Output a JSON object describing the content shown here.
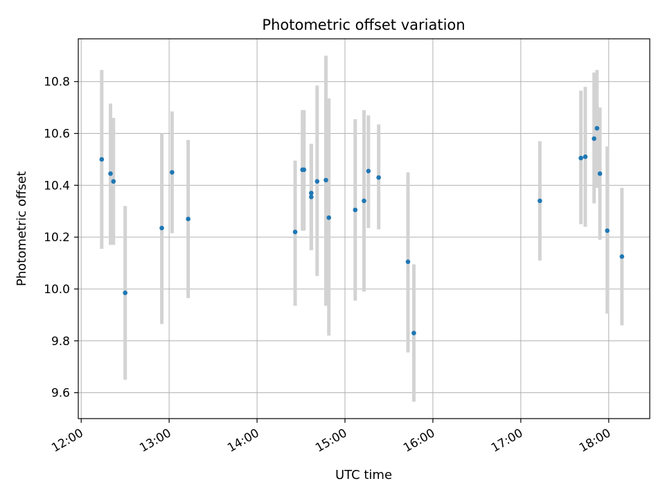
{
  "chart_data": {
    "type": "scatter",
    "title": "Photometric offset variation",
    "xlabel": "UTC time",
    "ylabel": "Photometric offset",
    "xlim": [
      "11:58",
      "18:28"
    ],
    "ylim": [
      9.5,
      10.965
    ],
    "x_ticks": [
      "12:00",
      "13:00",
      "14:00",
      "15:00",
      "16:00",
      "17:00",
      "18:00"
    ],
    "y_ticks": [
      9.6,
      9.8,
      10.0,
      10.2,
      10.4,
      10.6,
      10.8
    ],
    "grid": true,
    "legend": "none",
    "colors": {
      "point": "#1f77b4",
      "errorbar": "#d3d3d3",
      "grid": "#b0b0b0"
    },
    "points": [
      {
        "x": "12:14",
        "y": 10.5,
        "lo": 10.155,
        "hi": 10.845
      },
      {
        "x": "12:20",
        "y": 10.445,
        "lo": 10.17,
        "hi": 10.715
      },
      {
        "x": "12:22",
        "y": 10.415,
        "lo": 10.17,
        "hi": 10.66
      },
      {
        "x": "12:30",
        "y": 9.985,
        "lo": 9.65,
        "hi": 10.32
      },
      {
        "x": "12:55",
        "y": 10.235,
        "lo": 9.865,
        "hi": 10.6
      },
      {
        "x": "13:02",
        "y": 10.45,
        "lo": 10.215,
        "hi": 10.685
      },
      {
        "x": "13:13",
        "y": 10.27,
        "lo": 9.965,
        "hi": 10.575
      },
      {
        "x": "14:26",
        "y": 10.22,
        "lo": 9.935,
        "hi": 10.495
      },
      {
        "x": "14:31",
        "y": 10.46,
        "lo": 10.225,
        "hi": 10.69
      },
      {
        "x": "14:32",
        "y": 10.46,
        "lo": 10.225,
        "hi": 10.69
      },
      {
        "x": "14:37",
        "y": 10.37,
        "lo": 10.15,
        "hi": 10.56
      },
      {
        "x": "14:37",
        "y": 10.355,
        "lo": 10.15,
        "hi": 10.56
      },
      {
        "x": "14:41",
        "y": 10.415,
        "lo": 10.05,
        "hi": 10.785
      },
      {
        "x": "14:47",
        "y": 10.42,
        "lo": 9.935,
        "hi": 10.9
      },
      {
        "x": "14:49",
        "y": 10.275,
        "lo": 9.82,
        "hi": 10.735
      },
      {
        "x": "15:07",
        "y": 10.305,
        "lo": 9.955,
        "hi": 10.655
      },
      {
        "x": "15:13",
        "y": 10.34,
        "lo": 9.99,
        "hi": 10.69
      },
      {
        "x": "15:16",
        "y": 10.455,
        "lo": 10.235,
        "hi": 10.67
      },
      {
        "x": "15:23",
        "y": 10.43,
        "lo": 10.23,
        "hi": 10.635
      },
      {
        "x": "15:43",
        "y": 10.105,
        "lo": 9.755,
        "hi": 10.45
      },
      {
        "x": "15:47",
        "y": 9.83,
        "lo": 9.565,
        "hi": 10.095
      },
      {
        "x": "17:13",
        "y": 10.34,
        "lo": 10.11,
        "hi": 10.57
      },
      {
        "x": "17:41",
        "y": 10.505,
        "lo": 10.25,
        "hi": 10.765
      },
      {
        "x": "17:44",
        "y": 10.51,
        "lo": 10.24,
        "hi": 10.78
      },
      {
        "x": "17:50",
        "y": 10.58,
        "lo": 10.33,
        "hi": 10.835
      },
      {
        "x": "17:52",
        "y": 10.62,
        "lo": 10.39,
        "hi": 10.845
      },
      {
        "x": "17:54",
        "y": 10.445,
        "lo": 10.19,
        "hi": 10.7
      },
      {
        "x": "17:59",
        "y": 10.225,
        "lo": 9.905,
        "hi": 10.55
      },
      {
        "x": "18:09",
        "y": 10.125,
        "lo": 9.86,
        "hi": 10.39
      }
    ]
  }
}
